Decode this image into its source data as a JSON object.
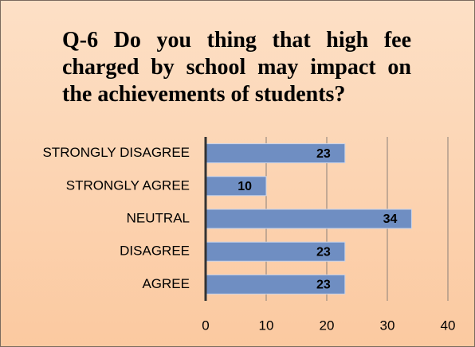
{
  "chart_data": {
    "type": "bar",
    "orientation": "horizontal",
    "title": "Q-6 Do you thing that high fee charged by school may impact on the achievements of students?",
    "categories": [
      "STRONGLY DISAGREE",
      "STRONGLY AGREE",
      "NEUTRAL",
      "DISAGREE",
      "AGREE"
    ],
    "values": [
      23,
      10,
      34,
      23,
      23
    ],
    "color": "#6f8ec2",
    "xlim": [
      0,
      40
    ],
    "xticks": [
      0,
      10,
      20,
      30,
      40
    ],
    "grid": true
  }
}
